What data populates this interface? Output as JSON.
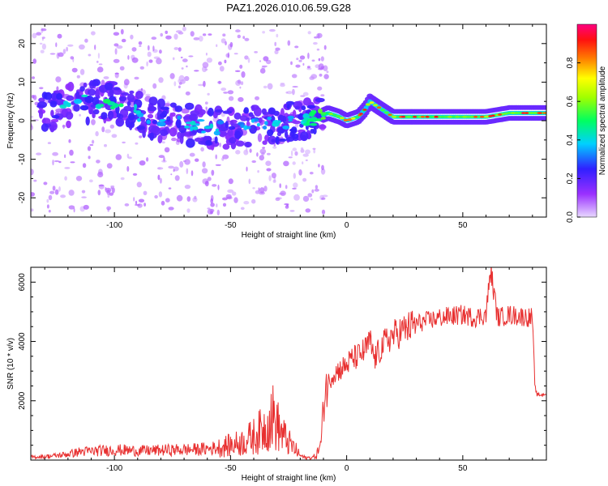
{
  "title": "PAZ1.2026.010.06.59.G28",
  "colors": {
    "snr_line": "#e83030",
    "frame": "#000000"
  },
  "chart_data": [
    {
      "type": "heatmap",
      "xlabel": "Height of straight line (km)",
      "ylabel": "Frequency (Hz)",
      "xlim": [
        -136,
        86
      ],
      "ylim": [
        -25,
        25
      ],
      "xticks": [
        -100,
        -50,
        0,
        50
      ],
      "yticks": [
        -20,
        -10,
        0,
        10,
        20
      ],
      "colorbar": {
        "label": "Normalized spectral amplitude",
        "range": [
          0,
          1
        ],
        "ticks": [
          0.0,
          0.2,
          0.4,
          0.6,
          0.8
        ],
        "colormap": "rainbow (violet-blue-cyan-green-yellow-red-magenta)"
      },
      "ridge": {
        "x": [
          -130,
          -120,
          -110,
          -100,
          -90,
          -80,
          -70,
          -60,
          -50,
          -40,
          -30,
          -20,
          -12,
          -8,
          -3,
          0,
          5,
          8,
          10,
          15,
          20,
          30,
          40,
          50,
          60,
          70,
          80,
          86
        ],
        "freq": [
          2,
          4,
          5,
          5,
          2,
          0,
          -1,
          -2,
          -2,
          -1,
          -1,
          0,
          1,
          2,
          1,
          0,
          1,
          3,
          5,
          3,
          1,
          1,
          1,
          1,
          1,
          2,
          2,
          2
        ],
        "amplitude": [
          0.3,
          0.35,
          0.4,
          0.45,
          0.35,
          0.3,
          0.35,
          0.35,
          0.3,
          0.3,
          0.35,
          0.35,
          0.5,
          0.55,
          0.6,
          0.9,
          0.5,
          0.55,
          0.7,
          0.55,
          0.6,
          0.55,
          0.55,
          0.6,
          0.6,
          0.6,
          0.55,
          0.5
        ]
      }
    },
    {
      "type": "line",
      "xlabel": "Height of straight line (km)",
      "ylabel": "SNR (10 * v/v)",
      "xlim": [
        -136,
        86
      ],
      "ylim": [
        0,
        6500
      ],
      "xticks": [
        -100,
        -50,
        0,
        50
      ],
      "yticks": [
        2000,
        4000,
        6000
      ],
      "series": [
        {
          "x": [
            -136,
            -130,
            -125,
            -120,
            -115,
            -110,
            -105,
            -100,
            -95,
            -90,
            -85,
            -80,
            -75,
            -70,
            -65,
            -60,
            -55,
            -50,
            -45,
            -40,
            -35,
            -32,
            -30,
            -28,
            -25,
            -22,
            -20,
            -18,
            -15,
            -13,
            -11,
            -10,
            -9,
            -8,
            -6,
            -4,
            -2,
            0,
            2,
            5,
            8,
            10,
            12,
            15,
            18,
            20,
            25,
            30,
            35,
            40,
            45,
            50,
            55,
            60,
            62,
            65,
            70,
            75,
            80,
            81,
            82,
            84,
            86
          ],
          "y": [
            100,
            120,
            150,
            200,
            280,
            300,
            320,
            340,
            330,
            310,
            320,
            330,
            340,
            350,
            360,
            380,
            420,
            500,
            600,
            800,
            1100,
            1500,
            1200,
            900,
            600,
            350,
            150,
            80,
            80,
            150,
            600,
            1800,
            2500,
            2600,
            2900,
            3000,
            3100,
            3200,
            3400,
            3500,
            3700,
            4000,
            3400,
            3800,
            4100,
            4200,
            4400,
            4600,
            4700,
            4800,
            4850,
            4900,
            4800,
            4900,
            6400,
            4800,
            4900,
            4850,
            4800,
            2500,
            2200,
            2200,
            2250
          ]
        }
      ]
    }
  ]
}
